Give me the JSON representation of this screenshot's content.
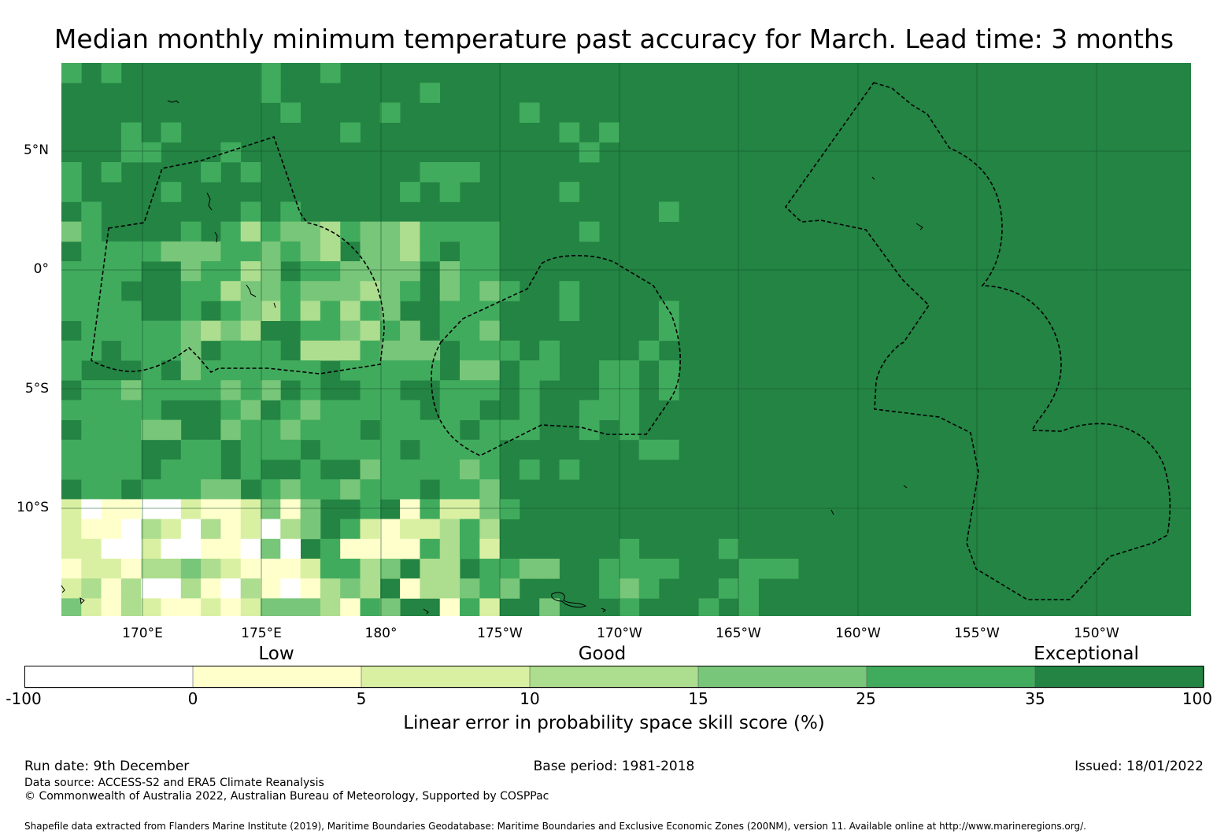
{
  "title": "Median monthly minimum temperature past accuracy for March. Lead time: 3 months",
  "map": {
    "lat_labels": [
      "5°N",
      "0°",
      "5°S",
      "10°S"
    ],
    "lon_labels": [
      "170°E",
      "175°E",
      "180°",
      "175°W",
      "170°W",
      "165°W",
      "160°W",
      "155°W",
      "150°W"
    ],
    "extent_lon": [
      166.6,
      214.0
    ],
    "extent_lat": [
      -14.6,
      8.6
    ],
    "background_class_color": "#238443",
    "coastline_color": "#000000",
    "eez_boundary_style": "dashed"
  },
  "colorbar": {
    "category_labels": [
      "Low",
      "Good",
      "Exceptional"
    ],
    "ticks": [
      "-100",
      "0",
      "5",
      "10",
      "15",
      "25",
      "35",
      "100"
    ],
    "bins": [
      {
        "range": "-100 to 0",
        "color": "#ffffff"
      },
      {
        "range": "0 to 5",
        "color": "#ffffcc"
      },
      {
        "range": "5 to 10",
        "color": "#d9f0a3"
      },
      {
        "range": "10 to 15",
        "color": "#addd8e"
      },
      {
        "range": "15 to 25",
        "color": "#78c679"
      },
      {
        "range": "25 to 35",
        "color": "#41ab5d"
      },
      {
        "range": "35 to 100",
        "color": "#238443"
      }
    ],
    "title": "Linear error in probability space skill score (%)"
  },
  "footer": {
    "run_date": "Run date: 9th December",
    "base_period": "Base period: 1981-2018",
    "issued": "Issued: 18/01/2022",
    "data_source": "Data source: ACCESS-S2 and ERA5 Climate Reanalysis",
    "copyright": "© Commonwealth of Australia 2022, Australian Bureau of Meteorology, Supported by COSPPac",
    "shapefile": "Shapefile data extracted from Flanders Marine Institute (2019), Maritime Boundaries Geodatabase: Maritime Boundaries and Exclusive Economic Zones (200NM), version 11. Available online at http://www.marineregions.org/."
  }
}
